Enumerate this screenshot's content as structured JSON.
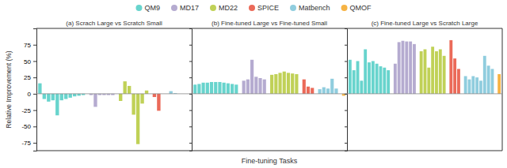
{
  "chart_data": [
    {
      "type": "bar",
      "title": "(a) Scrach Large vs Scratch Small",
      "ylabel": "Relative Improvement (%)",
      "legend": "top",
      "tick_labels": "y",
      "ylim": [
        -87,
        100
      ],
      "yticks": [
        -75,
        -50,
        -25,
        0,
        25,
        50,
        75
      ],
      "categories": [
        null,
        null,
        null,
        null,
        null,
        null,
        null,
        null,
        null,
        null,
        null,
        null,
        null,
        null,
        null,
        null,
        null,
        null,
        null,
        null,
        null,
        null,
        null,
        null,
        null,
        null,
        null,
        null,
        null,
        null,
        null,
        null
      ],
      "series": [
        {
          "name": "QM9",
          "color": "#4ECDC4",
          "values": [
            16,
            -8,
            -12,
            -10,
            -33,
            -10,
            -8,
            -6,
            -4,
            -3,
            -2,
            null,
            null,
            null,
            null,
            null,
            null,
            null,
            null,
            null,
            null,
            null,
            null,
            null,
            null,
            null,
            null,
            null,
            null,
            null,
            null,
            null
          ]
        },
        {
          "name": "MD17",
          "color": "#A89CC8",
          "values": [
            null,
            null,
            null,
            null,
            null,
            null,
            null,
            null,
            null,
            null,
            null,
            -2,
            -20,
            -2,
            -2,
            -2,
            -2,
            null,
            null,
            null,
            null,
            null,
            null,
            null,
            null,
            null,
            null,
            null,
            null,
            null,
            null,
            null
          ]
        },
        {
          "name": "MD22",
          "color": "#B5C93A",
          "values": [
            null,
            null,
            null,
            null,
            null,
            null,
            null,
            null,
            null,
            null,
            null,
            null,
            null,
            null,
            null,
            null,
            null,
            -11,
            19,
            12,
            -32,
            -77,
            -15,
            5,
            null,
            null,
            null,
            null,
            null,
            null,
            null,
            null
          ]
        },
        {
          "name": "SPICE",
          "color": "#E8503C",
          "values": [
            null,
            null,
            null,
            null,
            null,
            null,
            null,
            null,
            null,
            null,
            null,
            null,
            null,
            null,
            null,
            null,
            null,
            null,
            null,
            null,
            null,
            null,
            null,
            null,
            -5,
            -26,
            0,
            null,
            null,
            null,
            null,
            null
          ]
        },
        {
          "name": "Matbench",
          "color": "#7DC4D8",
          "values": [
            null,
            null,
            null,
            null,
            null,
            null,
            null,
            null,
            null,
            null,
            null,
            null,
            null,
            null,
            null,
            null,
            null,
            null,
            null,
            null,
            null,
            null,
            null,
            null,
            null,
            null,
            null,
            4,
            1,
            0,
            0,
            0
          ]
        },
        {
          "name": "QMOF",
          "color": "#F5A623",
          "values": [
            null,
            null,
            null,
            null,
            null,
            null,
            null,
            null,
            null,
            null,
            null,
            null,
            null,
            null,
            null,
            null,
            null,
            null,
            null,
            null,
            null,
            null,
            null,
            null,
            null,
            null,
            null,
            null,
            null,
            null,
            null,
            null
          ]
        }
      ]
    },
    {
      "type": "bar",
      "title": "(b) Fine-tuned Large vs Fine-tuned Small",
      "xlabel": "Fine-tuning Tasks",
      "tick_labels": false,
      "ylim": [
        -87,
        100
      ],
      "yticks": [
        -75,
        -50,
        -25,
        0,
        25,
        50,
        75
      ],
      "categories": [
        null,
        null,
        null,
        null,
        null,
        null,
        null,
        null,
        null,
        null,
        null,
        null,
        null,
        null,
        null,
        null,
        null,
        null,
        null,
        null,
        null,
        null,
        null,
        null,
        null,
        null,
        null,
        null,
        null,
        null,
        null,
        null,
        null
      ],
      "series": [
        {
          "name": "QM9",
          "color": "#4ECDC4",
          "values": [
            14,
            15,
            17,
            17,
            18,
            18,
            18,
            17,
            16,
            15,
            14,
            null,
            null,
            null,
            null,
            null,
            null,
            null,
            null,
            null,
            null,
            null,
            null,
            null,
            null,
            null,
            null,
            null,
            null,
            null,
            null,
            null,
            null
          ]
        },
        {
          "name": "MD17",
          "color": "#A89CC8",
          "values": [
            null,
            null,
            null,
            null,
            null,
            null,
            null,
            null,
            null,
            null,
            null,
            20,
            22,
            52,
            26,
            24,
            22,
            null,
            null,
            null,
            null,
            null,
            null,
            null,
            null,
            null,
            null,
            null,
            null,
            null,
            null,
            null,
            null
          ]
        },
        {
          "name": "MD22",
          "color": "#B5C93A",
          "values": [
            null,
            null,
            null,
            null,
            null,
            null,
            null,
            null,
            null,
            null,
            null,
            null,
            null,
            null,
            null,
            null,
            null,
            29,
            30,
            32,
            34,
            32,
            31,
            30,
            null,
            null,
            null,
            null,
            null,
            null,
            null,
            null,
            null
          ]
        },
        {
          "name": "SPICE",
          "color": "#E8503C",
          "values": [
            null,
            null,
            null,
            null,
            null,
            null,
            null,
            null,
            null,
            null,
            null,
            null,
            null,
            null,
            null,
            null,
            null,
            null,
            null,
            null,
            null,
            null,
            null,
            null,
            22,
            11,
            9,
            null,
            null,
            null,
            null,
            null,
            null
          ]
        },
        {
          "name": "Matbench",
          "color": "#7DC4D8",
          "values": [
            null,
            null,
            null,
            null,
            null,
            null,
            null,
            null,
            null,
            null,
            null,
            null,
            null,
            null,
            null,
            null,
            null,
            null,
            null,
            null,
            null,
            null,
            null,
            null,
            null,
            null,
            null,
            7,
            10,
            8,
            23,
            8,
            null
          ]
        },
        {
          "name": "QMOF",
          "color": "#F5A623",
          "values": [
            null,
            null,
            null,
            null,
            null,
            null,
            null,
            null,
            null,
            null,
            null,
            null,
            null,
            null,
            null,
            null,
            null,
            null,
            null,
            null,
            null,
            null,
            null,
            null,
            null,
            null,
            null,
            null,
            null,
            null,
            null,
            null,
            -3
          ]
        }
      ]
    },
    {
      "type": "bar",
      "title": "(c) Fine-tuned Large vs Scratch Large",
      "tick_labels": false,
      "ylim": [
        -87,
        100
      ],
      "yticks": [
        -75,
        -50,
        -25,
        0,
        25,
        50,
        75
      ],
      "categories": [
        null,
        null,
        null,
        null,
        null,
        null,
        null,
        null,
        null,
        null,
        null,
        null,
        null,
        null,
        null,
        null,
        null,
        null,
        null,
        null,
        null,
        null,
        null,
        null,
        null,
        null,
        null,
        null,
        null,
        null,
        null,
        null,
        null,
        null,
        null,
        null
      ],
      "series": [
        {
          "name": "QM9",
          "color": "#4ECDC4",
          "values": [
            52,
            36,
            50,
            20,
            68,
            48,
            50,
            46,
            42,
            40,
            36,
            null,
            null,
            null,
            null,
            null,
            null,
            null,
            null,
            null,
            null,
            null,
            null,
            null,
            null,
            null,
            null,
            null,
            null,
            null,
            null,
            null,
            null,
            null,
            null,
            null
          ]
        },
        {
          "name": "MD17",
          "color": "#A89CC8",
          "values": [
            null,
            null,
            null,
            null,
            null,
            null,
            null,
            null,
            null,
            null,
            null,
            46,
            79,
            81,
            80,
            80,
            76,
            null,
            null,
            null,
            null,
            null,
            null,
            null,
            null,
            null,
            null,
            null,
            null,
            null,
            null,
            null,
            null,
            null,
            null,
            null
          ]
        },
        {
          "name": "MD22",
          "color": "#B5C93A",
          "values": [
            null,
            null,
            null,
            null,
            null,
            null,
            null,
            null,
            null,
            null,
            null,
            null,
            null,
            null,
            null,
            null,
            null,
            65,
            68,
            40,
            72,
            65,
            68,
            58,
            null,
            null,
            null,
            null,
            null,
            null,
            null,
            null,
            null,
            null,
            null,
            null
          ]
        },
        {
          "name": "SPICE",
          "color": "#E8503C",
          "values": [
            null,
            null,
            null,
            null,
            null,
            null,
            null,
            null,
            null,
            null,
            null,
            null,
            null,
            null,
            null,
            null,
            null,
            null,
            null,
            null,
            null,
            null,
            null,
            null,
            82,
            54,
            38,
            null,
            null,
            null,
            null,
            null,
            null,
            null,
            null,
            null
          ]
        },
        {
          "name": "Matbench",
          "color": "#7DC4D8",
          "values": [
            null,
            null,
            null,
            null,
            null,
            null,
            null,
            null,
            null,
            null,
            null,
            null,
            null,
            null,
            null,
            null,
            null,
            null,
            null,
            null,
            null,
            null,
            null,
            null,
            null,
            null,
            null,
            27,
            22,
            27,
            25,
            20,
            58,
            43,
            38,
            null
          ]
        },
        {
          "name": "QMOF",
          "color": "#F5A623",
          "values": [
            null,
            null,
            null,
            null,
            null,
            null,
            null,
            null,
            null,
            null,
            null,
            null,
            null,
            null,
            null,
            null,
            null,
            null,
            null,
            null,
            null,
            null,
            null,
            null,
            null,
            null,
            null,
            null,
            null,
            null,
            null,
            null,
            null,
            null,
            null,
            30
          ]
        }
      ]
    }
  ]
}
